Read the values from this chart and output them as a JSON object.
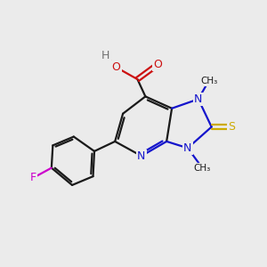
{
  "bg": "#ebebeb",
  "cb": "#1a1a1a",
  "cn": "#1414cc",
  "co": "#cc1010",
  "cf": "#cc00cc",
  "cs": "#ccaa00",
  "ch": "#707070",
  "lw": 1.6,
  "doff": 0.09,
  "fs": 9.0,
  "fsm": 7.5,
  "figsize": [
    3.0,
    3.0
  ],
  "dpi": 100,
  "xlim": [
    -0.8,
    9.2
  ],
  "ylim": [
    0.5,
    10.5
  ]
}
